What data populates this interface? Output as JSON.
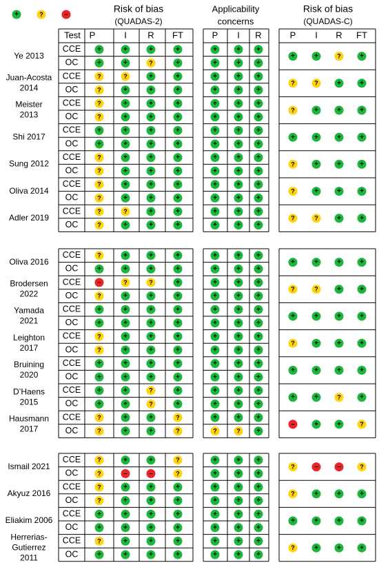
{
  "legend": {
    "low": {
      "symbol": "+",
      "color": "#1db63c"
    },
    "unclear": {
      "symbol": "?",
      "color": "#ffd30f"
    },
    "high": {
      "symbol": "–",
      "color": "#e8262a"
    }
  },
  "headers": {
    "quadas2_title": [
      "Risk of bias",
      "(QUADAS-2)"
    ],
    "applicability_title": [
      "Applicability",
      "concerns"
    ],
    "quadasc_title": [
      "Risk of bias",
      "(QUADAS-C)"
    ],
    "test_col": "Test",
    "q2_cols": [
      "P",
      "I",
      "R",
      "FT"
    ],
    "app_cols": [
      "P",
      "I",
      "R"
    ],
    "qc_cols": [
      "P",
      "I",
      "R",
      "FT"
    ]
  },
  "groups": [
    {
      "studies": [
        {
          "name": [
            "Ye 2013"
          ],
          "rows": [
            {
              "test": "CCE",
              "q2": [
                "L",
                "L",
                "L",
                "L"
              ],
              "app": [
                "L",
                "L",
                "L"
              ]
            },
            {
              "test": "OC",
              "q2": [
                "L",
                "L",
                "U",
                "L"
              ],
              "app": [
                "L",
                "L",
                "L"
              ]
            }
          ],
          "qc": [
            "L",
            "L",
            "U",
            "L"
          ]
        },
        {
          "name": [
            "Juan-Acosta",
            "2014"
          ],
          "rows": [
            {
              "test": "CCE",
              "q2": [
                "U",
                "U",
                "L",
                "L"
              ],
              "app": [
                "L",
                "L",
                "L"
              ]
            },
            {
              "test": "OC",
              "q2": [
                "U",
                "L",
                "L",
                "L"
              ],
              "app": [
                "L",
                "L",
                "L"
              ]
            }
          ],
          "qc": [
            "U",
            "U",
            "L",
            "L"
          ]
        },
        {
          "name": [
            "Meister",
            "2013"
          ],
          "rows": [
            {
              "test": "CCE",
              "q2": [
                "U",
                "L",
                "L",
                "L"
              ],
              "app": [
                "L",
                "L",
                "L"
              ]
            },
            {
              "test": "OC",
              "q2": [
                "U",
                "L",
                "L",
                "L"
              ],
              "app": [
                "L",
                "L",
                "L"
              ]
            }
          ],
          "qc": [
            "U",
            "L",
            "L",
            "L"
          ]
        },
        {
          "name": [
            "Shi 2017"
          ],
          "rows": [
            {
              "test": "CCE",
              "q2": [
                "L",
                "L",
                "L",
                "L"
              ],
              "app": [
                "L",
                "L",
                "L"
              ]
            },
            {
              "test": "OC",
              "q2": [
                "L",
                "L",
                "L",
                "L"
              ],
              "app": [
                "L",
                "L",
                "L"
              ]
            }
          ],
          "qc": [
            "L",
            "L",
            "L",
            "L"
          ]
        },
        {
          "name": [
            "Sung 2012"
          ],
          "rows": [
            {
              "test": "CCE",
              "q2": [
                "U",
                "L",
                "L",
                "L"
              ],
              "app": [
                "L",
                "L",
                "L"
              ]
            },
            {
              "test": "OC",
              "q2": [
                "U",
                "L",
                "L",
                "L"
              ],
              "app": [
                "L",
                "L",
                "L"
              ]
            }
          ],
          "qc": [
            "U",
            "L",
            "L",
            "L"
          ]
        },
        {
          "name": [
            "Oliva 2014"
          ],
          "rows": [
            {
              "test": "CCE",
              "q2": [
                "U",
                "L",
                "L",
                "L"
              ],
              "app": [
                "L",
                "L",
                "L"
              ]
            },
            {
              "test": "OC",
              "q2": [
                "U",
                "L",
                "L",
                "L"
              ],
              "app": [
                "L",
                "L",
                "L"
              ]
            }
          ],
          "qc": [
            "U",
            "L",
            "L",
            "L"
          ]
        },
        {
          "name": [
            "Adler 2019"
          ],
          "rows": [
            {
              "test": "CCE",
              "q2": [
                "U",
                "U",
                "L",
                "L"
              ],
              "app": [
                "L",
                "L",
                "L"
              ]
            },
            {
              "test": "OC",
              "q2": [
                "U",
                "L",
                "L",
                "L"
              ],
              "app": [
                "L",
                "L",
                "L"
              ]
            }
          ],
          "qc": [
            "U",
            "U",
            "L",
            "L"
          ]
        }
      ]
    },
    {
      "studies": [
        {
          "name": [
            "Oliva 2016"
          ],
          "rows": [
            {
              "test": "CCE",
              "q2": [
                "U",
                "L",
                "L",
                "L"
              ],
              "app": [
                "L",
                "L",
                "L"
              ]
            },
            {
              "test": "OC",
              "q2": [
                "L",
                "L",
                "L",
                "L"
              ],
              "app": [
                "L",
                "L",
                "L"
              ]
            }
          ],
          "qc": [
            "L",
            "L",
            "L",
            "L"
          ]
        },
        {
          "name": [
            "Brodersen",
            "2022"
          ],
          "rows": [
            {
              "test": "CCE",
              "q2": [
                "H",
                "U",
                "U",
                "L"
              ],
              "app": [
                "L",
                "L",
                "L"
              ]
            },
            {
              "test": "OC",
              "q2": [
                "U",
                "L",
                "L",
                "L"
              ],
              "app": [
                "L",
                "L",
                "L"
              ]
            }
          ],
          "qc": [
            "U",
            "U",
            "L",
            "L"
          ]
        },
        {
          "name": [
            "Yamada",
            "2021"
          ],
          "rows": [
            {
              "test": "CCE",
              "q2": [
                "L",
                "L",
                "L",
                "L"
              ],
              "app": [
                "L",
                "L",
                "L"
              ]
            },
            {
              "test": "OC",
              "q2": [
                "L",
                "L",
                "L",
                "L"
              ],
              "app": [
                "L",
                "L",
                "L"
              ]
            }
          ],
          "qc": [
            "L",
            "L",
            "L",
            "L"
          ]
        },
        {
          "name": [
            "Leighton",
            "2017"
          ],
          "rows": [
            {
              "test": "CCE",
              "q2": [
                "U",
                "L",
                "L",
                "L"
              ],
              "app": [
                "L",
                "L",
                "L"
              ]
            },
            {
              "test": "OC",
              "q2": [
                "U",
                "L",
                "L",
                "L"
              ],
              "app": [
                "L",
                "L",
                "L"
              ]
            }
          ],
          "qc": [
            "U",
            "L",
            "L",
            "L"
          ]
        },
        {
          "name": [
            "Bruining",
            "2020"
          ],
          "rows": [
            {
              "test": "CCE",
              "q2": [
                "L",
                "L",
                "L",
                "L"
              ],
              "app": [
                "L",
                "L",
                "L"
              ]
            },
            {
              "test": "OC",
              "q2": [
                "L",
                "L",
                "L",
                "L"
              ],
              "app": [
                "L",
                "L",
                "L"
              ]
            }
          ],
          "qc": [
            "L",
            "L",
            "L",
            "L"
          ]
        },
        {
          "name": [
            "D’Haens",
            "2015"
          ],
          "rows": [
            {
              "test": "CCE",
              "q2": [
                "L",
                "L",
                "U",
                "L"
              ],
              "app": [
                "L",
                "L",
                "L"
              ]
            },
            {
              "test": "OC",
              "q2": [
                "L",
                "L",
                "U",
                "L"
              ],
              "app": [
                "L",
                "L",
                "L"
              ]
            }
          ],
          "qc": [
            "L",
            "L",
            "U",
            "L"
          ]
        },
        {
          "name": [
            "Hausmann",
            "2017"
          ],
          "rows": [
            {
              "test": "CCE",
              "q2": [
                "U",
                "L",
                "L",
                "U"
              ],
              "app": [
                "L",
                "L",
                "L"
              ]
            },
            {
              "test": "OC",
              "q2": [
                "U",
                "L",
                "L",
                "U"
              ],
              "app": [
                "U",
                "U",
                "L"
              ]
            }
          ],
          "qc": [
            "H",
            "L",
            "L",
            "U"
          ]
        }
      ]
    },
    {
      "studies": [
        {
          "name": [
            "Ismail 2021"
          ],
          "rows": [
            {
              "test": "CCE",
              "q2": [
                "U",
                "L",
                "L",
                "U"
              ],
              "app": [
                "L",
                "L",
                "L"
              ]
            },
            {
              "test": "OC",
              "q2": [
                "U",
                "H",
                "H",
                "U"
              ],
              "app": [
                "L",
                "L",
                "L"
              ]
            }
          ],
          "qc": [
            "U",
            "H",
            "H",
            "U"
          ]
        },
        {
          "name": [
            "Akyuz 2016"
          ],
          "rows": [
            {
              "test": "CCE",
              "q2": [
                "U",
                "L",
                "L",
                "L"
              ],
              "app": [
                "L",
                "L",
                "L"
              ]
            },
            {
              "test": "OC",
              "q2": [
                "U",
                "L",
                "L",
                "L"
              ],
              "app": [
                "L",
                "L",
                "L"
              ]
            }
          ],
          "qc": [
            "U",
            "L",
            "L",
            "L"
          ]
        },
        {
          "name": [
            "Eliakim 2006"
          ],
          "rows": [
            {
              "test": "CCE",
              "q2": [
                "L",
                "L",
                "L",
                "L"
              ],
              "app": [
                "L",
                "L",
                "L"
              ]
            },
            {
              "test": "OC",
              "q2": [
                "L",
                "L",
                "L",
                "L"
              ],
              "app": [
                "L",
                "L",
                "L"
              ]
            }
          ],
          "qc": [
            "L",
            "L",
            "L",
            "L"
          ]
        },
        {
          "name": [
            "Herrerias-",
            "Gutierrez",
            "2011"
          ],
          "rows": [
            {
              "test": "CCE",
              "q2": [
                "U",
                "L",
                "L",
                "L"
              ],
              "app": [
                "L",
                "L",
                "L"
              ]
            },
            {
              "test": "OC",
              "q2": [
                "L",
                "L",
                "L",
                "L"
              ],
              "app": [
                "L",
                "L",
                "L"
              ]
            }
          ],
          "qc": [
            "U",
            "L",
            "L",
            "L"
          ]
        }
      ]
    }
  ]
}
